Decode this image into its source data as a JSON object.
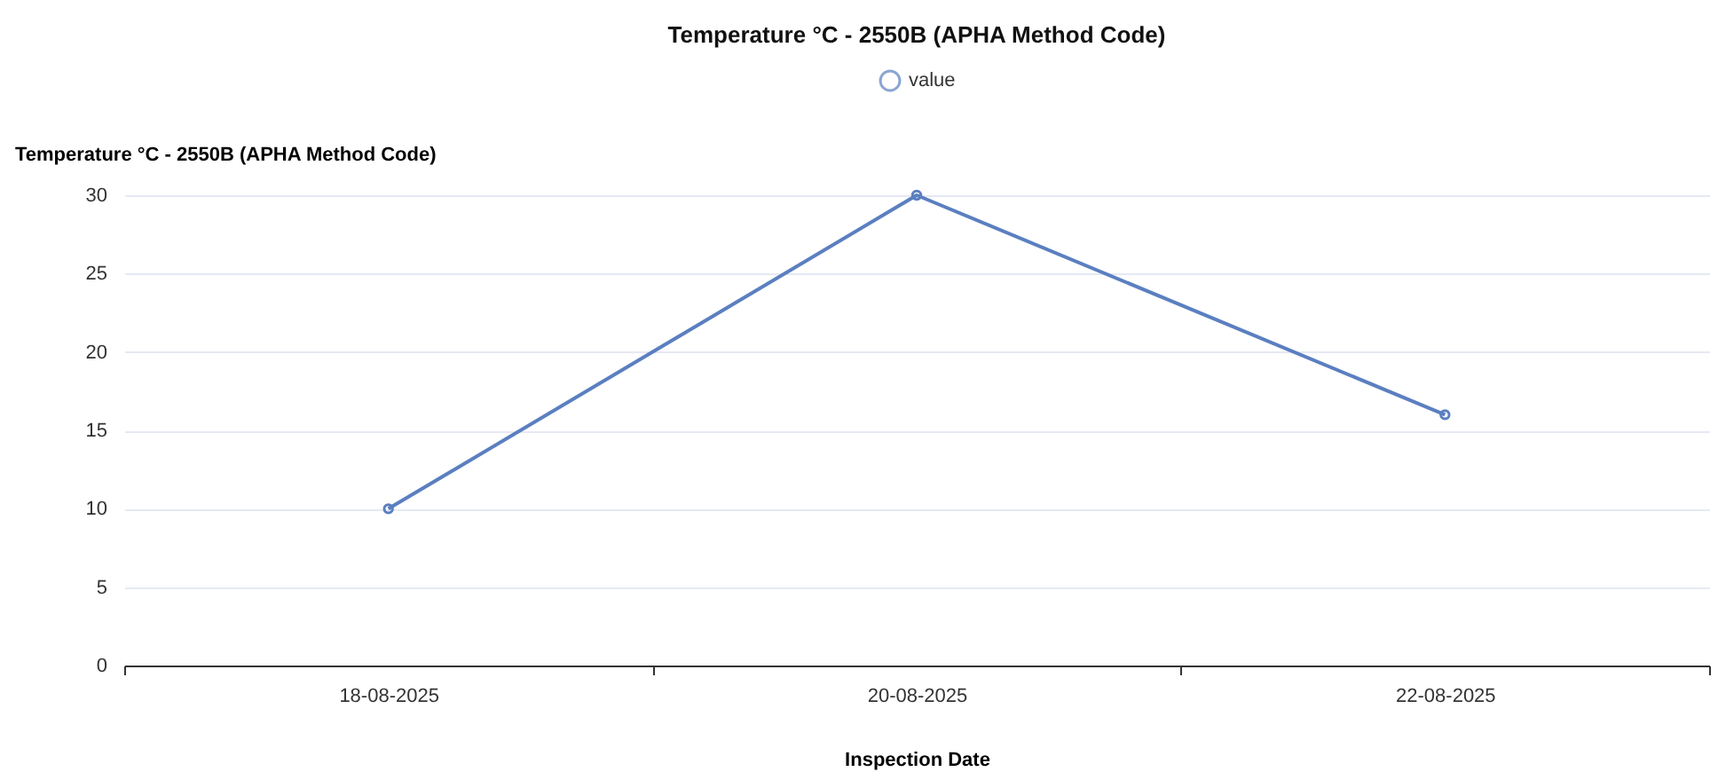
{
  "chart_data": {
    "type": "line",
    "title": "Temperature °C - 2550B (APHA Method Code)",
    "xlabel": "Inspection Date",
    "ylabel": "Temperature °C - 2550B (APHA Method Code)",
    "categories": [
      "18-08-2025",
      "20-08-2025",
      "22-08-2025"
    ],
    "series": [
      {
        "name": "value",
        "color": "#5b7fc0",
        "values": [
          10,
          30,
          16
        ]
      }
    ],
    "ylim": [
      0,
      30
    ],
    "yticks": [
      0,
      5,
      10,
      15,
      20,
      25,
      30
    ],
    "grid": "y",
    "legend": "top",
    "marker": "circle"
  }
}
